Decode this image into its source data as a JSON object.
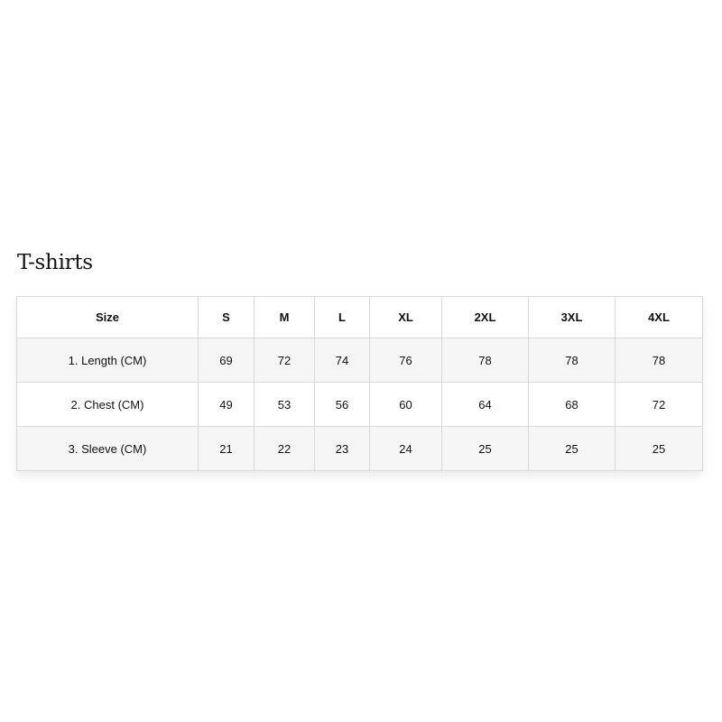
{
  "title": "T-shirts",
  "table": {
    "headers": [
      "Size",
      "S",
      "M",
      "L",
      "XL",
      "2XL",
      "3XL",
      "4XL"
    ],
    "rows": [
      [
        "1. Length (CM)",
        "69",
        "72",
        "74",
        "76",
        "78",
        "78",
        "78"
      ],
      [
        "2. Chest (CM)",
        "49",
        "53",
        "56",
        "60",
        "64",
        "68",
        "72"
      ],
      [
        "3. Sleeve (CM)",
        "21",
        "22",
        "23",
        "24",
        "25",
        "25",
        "25"
      ]
    ]
  }
}
